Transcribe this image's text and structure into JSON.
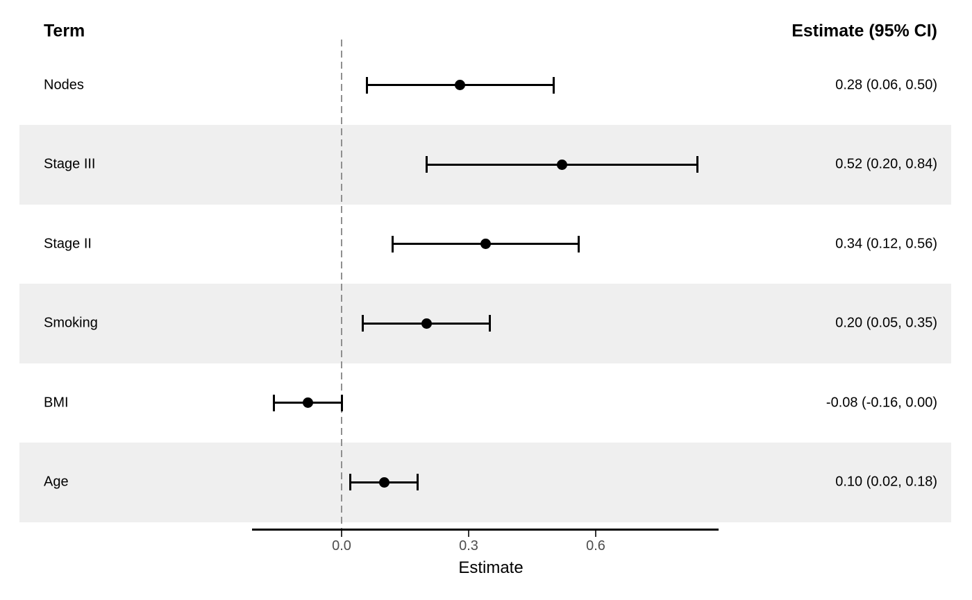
{
  "header": {
    "term": "Term",
    "estimate_ci": "Estimate (95% CI)"
  },
  "chart_data": {
    "type": "scatter",
    "subtype": "forest-plot-with-error-bars",
    "title": "",
    "xlabel": "Estimate",
    "ylabel": "",
    "xlim": [
      -0.21,
      0.89
    ],
    "grid": "off",
    "legend": "none",
    "zero_reference_line": 0,
    "x_ticks": {
      "values": [
        0,
        0.3,
        0.6
      ],
      "labels": [
        "0.0",
        "0.3",
        "0.6"
      ]
    },
    "row_shading": "alternating gray stripes on rows 2, 4, 6 (Stage III, Smoking, Age)",
    "rows": [
      {
        "term": "Nodes",
        "estimate": 0.28,
        "ci_low": 0.06,
        "ci_high": 0.5,
        "value_label": "0.28 (0.06, 0.50)",
        "striped": false
      },
      {
        "term": "Stage III",
        "estimate": 0.52,
        "ci_low": 0.2,
        "ci_high": 0.84,
        "value_label": "0.52 (0.20, 0.84)",
        "striped": true
      },
      {
        "term": "Stage II",
        "estimate": 0.34,
        "ci_low": 0.12,
        "ci_high": 0.56,
        "value_label": "0.34 (0.12, 0.56)",
        "striped": false
      },
      {
        "term": "Smoking",
        "estimate": 0.2,
        "ci_low": 0.05,
        "ci_high": 0.35,
        "value_label": "0.20 (0.05, 0.35)",
        "striped": true
      },
      {
        "term": "BMI",
        "estimate": -0.08,
        "ci_low": -0.16,
        "ci_high": 0.0,
        "value_label": "-0.08 (-0.16, 0.00)",
        "striped": false
      },
      {
        "term": "Age",
        "estimate": 0.1,
        "ci_low": 0.02,
        "ci_high": 0.18,
        "value_label": "0.10 (0.02, 0.18)",
        "striped": true
      }
    ]
  },
  "colors": {
    "background": "#ffffff",
    "stripe": "#efefef",
    "marker": "#000000",
    "error_bar": "#000000",
    "axis_line": "#000000",
    "tick_label": "#4d4d4d",
    "zero_line": "#8f8f8f",
    "text": "#000000"
  }
}
